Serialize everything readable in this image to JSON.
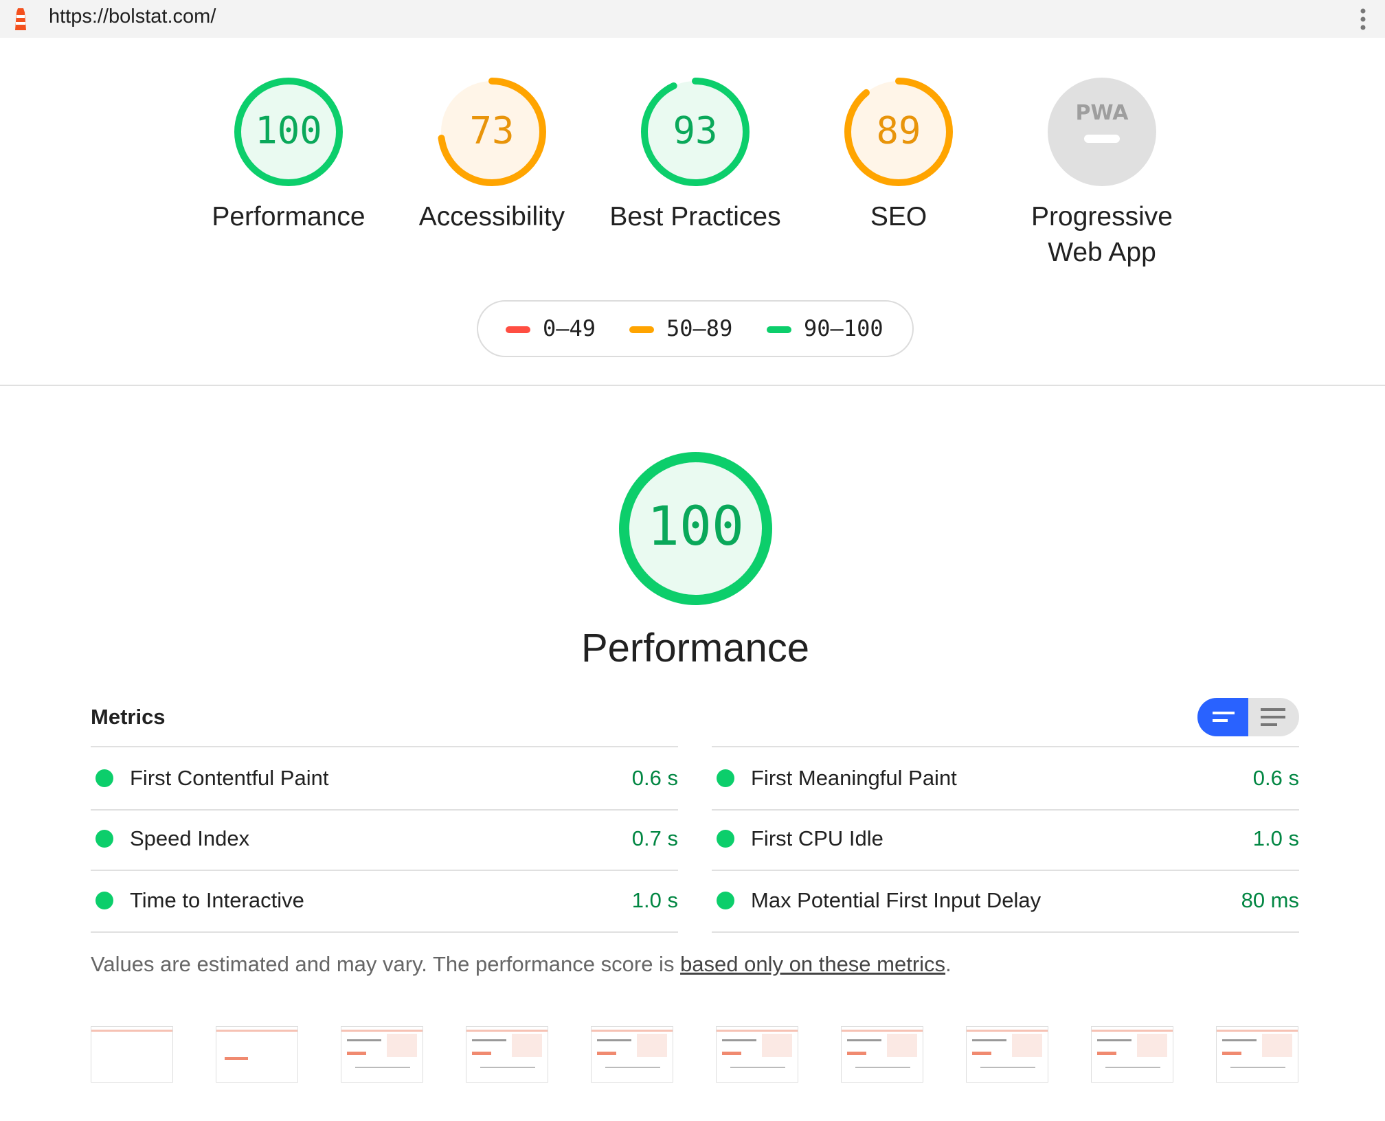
{
  "browser": {
    "url": "https://bolstat.com/"
  },
  "gauges": [
    {
      "score": 100,
      "label": "Performance",
      "color": "#0cce6b",
      "fill": "#eafaf1",
      "text_color": "#0aa85a"
    },
    {
      "score": 73,
      "label": "Accessibility",
      "color": "#ffa400",
      "fill": "#fff5e8",
      "text_color": "#e8940a"
    },
    {
      "score": 93,
      "label": "Best Practices",
      "color": "#0cce6b",
      "fill": "#eafaf1",
      "text_color": "#0aa85a"
    },
    {
      "score": 89,
      "label": "SEO",
      "color": "#ffa400",
      "fill": "#fff5e8",
      "text_color": "#e8940a"
    },
    {
      "badge": "PWA",
      "label": "Progressive Web App"
    }
  ],
  "legend": [
    {
      "label": "0–49",
      "color": "#ff4e42"
    },
    {
      "label": "50–89",
      "color": "#ffa400"
    },
    {
      "label": "90–100",
      "color": "#0cce6b"
    }
  ],
  "main": {
    "score": 100,
    "title": "Performance",
    "color": "#0cce6b",
    "fill": "#eafaf1",
    "text_color": "#0aa85a"
  },
  "metrics": {
    "title": "Metrics",
    "items": [
      {
        "label": "First Contentful Paint",
        "value": "0.6 s"
      },
      {
        "label": "First Meaningful Paint",
        "value": "0.6 s"
      },
      {
        "label": "Speed Index",
        "value": "0.7 s"
      },
      {
        "label": "First CPU Idle",
        "value": "1.0 s"
      },
      {
        "label": "Time to Interactive",
        "value": "1.0 s"
      },
      {
        "label": "Max Potential First Input Delay",
        "value": "80 ms"
      }
    ]
  },
  "note": {
    "text": "Values are estimated and may vary. The performance score is ",
    "link": "based only on these metrics",
    "end": "."
  }
}
